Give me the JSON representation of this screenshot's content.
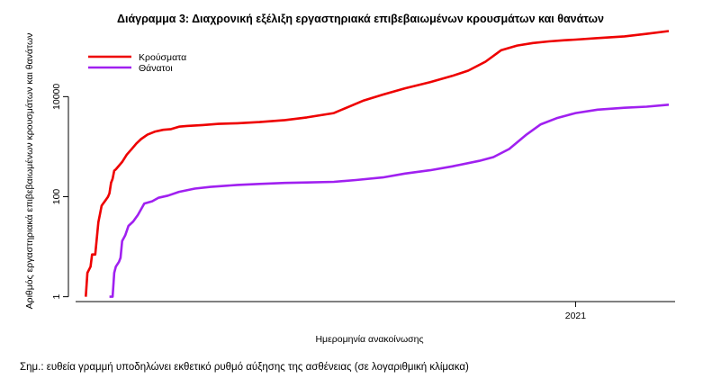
{
  "chart_data": {
    "type": "line",
    "title": "Διάγραμμα 3: Διαχρονική εξέλιξη εργαστηριακά επιβεβαιωμένων κρουσμάτων και θανάτων",
    "xlabel": "Ημερομηνία ανακοίνωσης",
    "ylabel": "Αριθμός εργαστηριακά επιβεβαιωμένων κρουσμάτων και θανάτων",
    "y_scale": "log10",
    "ylim": [
      0.8,
      150000
    ],
    "y_ticks": [
      {
        "value": 1,
        "label": "1"
      },
      {
        "value": 100,
        "label": "100"
      },
      {
        "value": 10000,
        "label": "10000"
      }
    ],
    "x_ticks": [
      {
        "value": "2021-01-01",
        "label": "2021"
      }
    ],
    "xlim": [
      "2020-02-15",
      "2021-03-05"
    ],
    "grid": false,
    "legend_position": "top-left",
    "colors": {
      "cases": "#ee0000",
      "deaths": "#a020f0"
    },
    "series": [
      {
        "name": "Κρούσματα",
        "color": "#ee0000",
        "points": [
          [
            "2020-02-26",
            1
          ],
          [
            "2020-02-27",
            3
          ],
          [
            "2020-02-29",
            4
          ],
          [
            "2020-03-01",
            7
          ],
          [
            "2020-03-03",
            7
          ],
          [
            "2020-03-05",
            31
          ],
          [
            "2020-03-06",
            45
          ],
          [
            "2020-03-07",
            66
          ],
          [
            "2020-03-08",
            73
          ],
          [
            "2020-03-10",
            89
          ],
          [
            "2020-03-11",
            99
          ],
          [
            "2020-03-12",
            117
          ],
          [
            "2020-03-13",
            190
          ],
          [
            "2020-03-14",
            228
          ],
          [
            "2020-03-15",
            331
          ],
          [
            "2020-03-16",
            352
          ],
          [
            "2020-03-18",
            418
          ],
          [
            "2020-03-20",
            495
          ],
          [
            "2020-03-23",
            695
          ],
          [
            "2020-03-26",
            892
          ],
          [
            "2020-03-29",
            1156
          ],
          [
            "2020-04-01",
            1415
          ],
          [
            "2020-04-05",
            1735
          ],
          [
            "2020-04-10",
            2011
          ],
          [
            "2020-04-15",
            2170
          ],
          [
            "2020-04-20",
            2245
          ],
          [
            "2020-04-25",
            2506
          ],
          [
            "2020-04-30",
            2591
          ],
          [
            "2020-05-10",
            2710
          ],
          [
            "2020-05-20",
            2850
          ],
          [
            "2020-06-01",
            2940
          ],
          [
            "2020-06-15",
            3100
          ],
          [
            "2020-07-01",
            3400
          ],
          [
            "2020-07-15",
            3850
          ],
          [
            "2020-08-01",
            4700
          ],
          [
            "2020-08-10",
            6200
          ],
          [
            "2020-08-20",
            8400
          ],
          [
            "2020-09-01",
            11000
          ],
          [
            "2020-09-15",
            14700
          ],
          [
            "2020-10-01",
            19500
          ],
          [
            "2020-10-15",
            26000
          ],
          [
            "2020-10-25",
            33000
          ],
          [
            "2020-11-05",
            50000
          ],
          [
            "2020-11-15",
            85000
          ],
          [
            "2020-11-25",
            105000
          ],
          [
            "2020-12-05",
            118000
          ],
          [
            "2020-12-15",
            127000
          ],
          [
            "2020-12-25",
            134000
          ],
          [
            "2021-01-01",
            138000
          ],
          [
            "2021-01-15",
            148000
          ],
          [
            "2021-02-01",
            160000
          ],
          [
            "2021-02-15",
            180000
          ],
          [
            "2021-03-01",
            205000
          ]
        ]
      },
      {
        "name": "Θάνατοι",
        "color": "#a020f0",
        "points": [
          [
            "2020-03-12",
            1
          ],
          [
            "2020-03-14",
            1
          ],
          [
            "2020-03-15",
            3
          ],
          [
            "2020-03-16",
            4
          ],
          [
            "2020-03-18",
            5
          ],
          [
            "2020-03-19",
            6
          ],
          [
            "2020-03-20",
            13
          ],
          [
            "2020-03-22",
            17
          ],
          [
            "2020-03-24",
            26
          ],
          [
            "2020-03-27",
            32
          ],
          [
            "2020-03-30",
            43
          ],
          [
            "2020-04-03",
            73
          ],
          [
            "2020-04-08",
            81
          ],
          [
            "2020-04-12",
            95
          ],
          [
            "2020-04-18",
            105
          ],
          [
            "2020-04-25",
            125
          ],
          [
            "2020-05-05",
            145
          ],
          [
            "2020-05-15",
            157
          ],
          [
            "2020-06-01",
            172
          ],
          [
            "2020-06-15",
            180
          ],
          [
            "2020-07-01",
            188
          ],
          [
            "2020-07-15",
            192
          ],
          [
            "2020-08-01",
            198
          ],
          [
            "2020-08-15",
            215
          ],
          [
            "2020-09-01",
            243
          ],
          [
            "2020-09-15",
            290
          ],
          [
            "2020-10-01",
            338
          ],
          [
            "2020-10-15",
            403
          ],
          [
            "2020-11-01",
            520
          ],
          [
            "2020-11-10",
            620
          ],
          [
            "2020-11-20",
            900
          ],
          [
            "2020-12-01",
            1750
          ],
          [
            "2020-12-10",
            2800
          ],
          [
            "2020-12-20",
            3700
          ],
          [
            "2021-01-01",
            4700
          ],
          [
            "2021-01-15",
            5500
          ],
          [
            "2021-02-01",
            6000
          ],
          [
            "2021-02-15",
            6300
          ],
          [
            "2021-03-01",
            6900
          ]
        ]
      }
    ]
  },
  "note": "Σημ.: ευθεία γραμμή υποδηλώνει εκθετικό ρυθμό αύξησης της ασθένειας (σε λογαριθμική κλίμακα)"
}
